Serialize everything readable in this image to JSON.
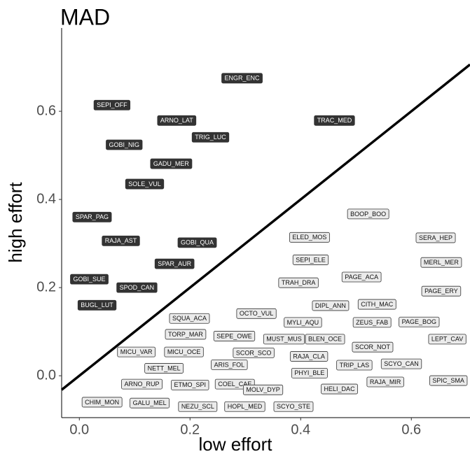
{
  "chart_data": {
    "type": "scatter",
    "title": "MAD",
    "x_label": "low effort",
    "y_label": "high effort",
    "xlim": [
      -0.032,
      0.706
    ],
    "ylim": [
      -0.095,
      0.789
    ],
    "xticks": [
      {
        "value": 0,
        "label": "0.0"
      },
      0.2,
      0.4,
      0.6
    ],
    "yticks": [
      {
        "value": 0,
        "label": "0.0"
      },
      0.2,
      0.4,
      0.6
    ],
    "identity_line": true,
    "series": [
      {
        "color": "#333333",
        "text_color": "#ffffff",
        "labels": [
          "ENGR_ENC",
          "SEPI_OFF",
          "ARNO_LAT",
          "TRAC_MED",
          "TRIG_LUC",
          "GOBI_NIG",
          "GADU_MER",
          "SOLE_VUL",
          "SPAR_PAG",
          "RAJA_AST",
          "GOBI_QUA",
          "SPAR_AUR",
          "GOBI_SUE",
          "SPOD_CAN",
          "BUGL_LUT"
        ],
        "x": [
          0.294,
          0.059,
          0.176,
          0.461,
          0.237,
          0.081,
          0.166,
          0.118,
          0.023,
          0.075,
          0.213,
          0.172,
          0.018,
          0.104,
          0.032
        ],
        "values": [
          0.675,
          0.614,
          0.579,
          0.579,
          0.541,
          0.524,
          0.481,
          0.435,
          0.36,
          0.306,
          0.302,
          0.254,
          0.219,
          0.2,
          0.16
        ]
      },
      {
        "color": "#ebebeb",
        "text_color": "#111111",
        "labels": [
          "BOOP_BOO",
          "ELED_MOS",
          "SERA_HEP",
          "SEPI_ELE",
          "MERL_MER",
          "PAGE_ACA",
          "TRAH_DRA",
          "PAGE_ERY",
          "DIPL_ANN",
          "CITH_MAC",
          "SQUA_ACA",
          "OCTO_VUL",
          "MYLI_AQU",
          "ZEUS_FAB",
          "PAGE_BOG",
          "TORP_MAR",
          "SEPE_OWE",
          "MUST_MUS",
          "BLEN_OCE",
          "LEPT_CAV",
          "MICU_VAR",
          "MICU_OCE",
          "SCOR_SCO",
          "SCOR_NOT",
          "RAJA_CLA",
          "ARIS_FOL",
          "TRIP_LAS",
          "SCYO_CAN",
          "NETT_MEL",
          "PHYI_BLE",
          "ARNO_RUP",
          "ETMO_SPI",
          "COEL_CAE",
          "MOLV_DYP",
          "RAJA_MIR",
          "SPIC_SMA",
          "HELI_DAC",
          "CHIM_MON",
          "GALU_MEL",
          "NEZU_SCL",
          "HOPL_MED",
          "SCYO_STE"
        ],
        "x": [
          0.522,
          0.416,
          0.644,
          0.418,
          0.654,
          0.51,
          0.396,
          0.654,
          0.454,
          0.538,
          0.199,
          0.32,
          0.404,
          0.529,
          0.614,
          0.192,
          0.28,
          0.37,
          0.444,
          0.665,
          0.103,
          0.189,
          0.315,
          0.53,
          0.415,
          0.271,
          0.497,
          0.582,
          0.153,
          0.416,
          0.113,
          0.2,
          0.281,
          0.332,
          0.553,
          0.667,
          0.47,
          0.041,
          0.127,
          0.214,
          0.299,
          0.387
        ],
        "values": [
          0.367,
          0.314,
          0.313,
          0.263,
          0.257,
          0.224,
          0.211,
          0.192,
          0.159,
          0.162,
          0.13,
          0.141,
          0.121,
          0.121,
          0.122,
          0.094,
          0.09,
          0.083,
          0.083,
          0.083,
          0.054,
          0.054,
          0.052,
          0.065,
          0.044,
          0.025,
          0.024,
          0.027,
          0.017,
          0.006,
          -0.019,
          -0.021,
          -0.019,
          -0.032,
          -0.014,
          -0.011,
          -0.03,
          -0.06,
          -0.062,
          -0.07,
          -0.07,
          -0.07
        ]
      }
    ]
  }
}
